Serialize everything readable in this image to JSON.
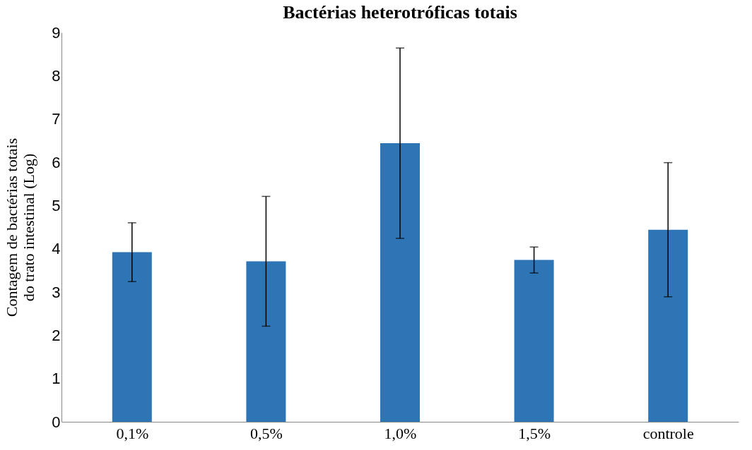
{
  "chart_data": {
    "type": "bar",
    "title": "Bactérias heterotróficas totais",
    "ylabel": "Contagem de bactérias  totais\ndo trato intestinal (Log)",
    "categories": [
      "0,1%",
      "0,5%",
      "1,0%",
      "1,5%",
      "controle"
    ],
    "series": [
      {
        "color": "#2e75b6",
        "values": [
          3.92,
          3.71,
          6.44,
          3.74,
          4.44
        ],
        "errors": [
          0.68,
          1.5,
          2.2,
          0.3,
          1.55
        ]
      }
    ],
    "ylim": [
      0,
      9
    ],
    "yticks": [
      0,
      1,
      2,
      3,
      4,
      5,
      6,
      7,
      8,
      9
    ],
    "grid": false
  }
}
